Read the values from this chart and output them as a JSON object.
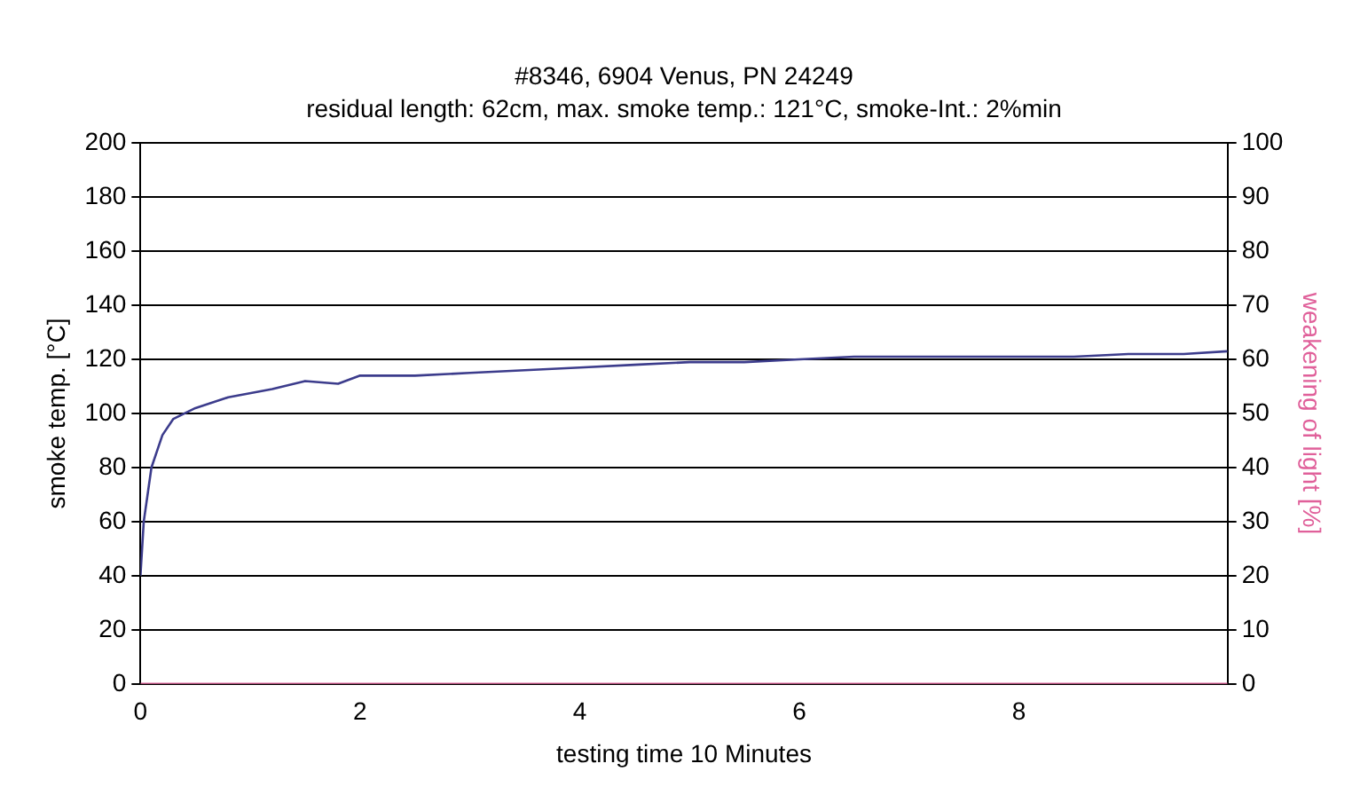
{
  "chart_data": {
    "type": "line",
    "title": "#8346, 6904 Venus, PN 24249",
    "subtitle": "residual length: 62cm, max. smoke temp.: 121°C, smoke-Int.: 2%min",
    "xlabel": "testing time 10 Minutes",
    "ylabel": "smoke temp. [°C]",
    "y2label": "weakening of light [%]",
    "xlim": [
      0,
      9.9
    ],
    "xticks": [
      0,
      2,
      4,
      6,
      8
    ],
    "ylim": [
      0,
      200
    ],
    "yticks": [
      0,
      20,
      40,
      60,
      80,
      100,
      120,
      140,
      160,
      180,
      200
    ],
    "y2lim": [
      0,
      100
    ],
    "y2ticks": [
      0,
      10,
      20,
      30,
      40,
      50,
      60,
      70,
      80,
      90,
      100
    ],
    "grid": "y",
    "legend": false,
    "marker": "none",
    "series": [
      {
        "color": "#3c3c8c",
        "x": [
          0,
          0.03,
          0.1,
          0.2,
          0.3,
          0.5,
          0.8,
          1.2,
          1.5,
          1.8,
          2.0,
          2.5,
          3,
          3.5,
          4,
          4.5,
          5,
          5.5,
          6,
          6.5,
          7,
          7.5,
          8,
          8.5,
          9,
          9.5,
          9.9
        ],
        "values": [
          40,
          60,
          80,
          92,
          98,
          102,
          106,
          109,
          112,
          111,
          114,
          114,
          115,
          116,
          117,
          118,
          119,
          119,
          120,
          121,
          121,
          121,
          121,
          121,
          122,
          122,
          123
        ]
      },
      {
        "color": "#e0609a",
        "axis": "y2",
        "x": [
          0,
          1,
          2,
          3,
          4,
          5,
          6,
          7,
          8,
          9,
          9.9
        ],
        "values": [
          0,
          0,
          0,
          0,
          0,
          0,
          0,
          0,
          0,
          0,
          0
        ]
      }
    ]
  }
}
